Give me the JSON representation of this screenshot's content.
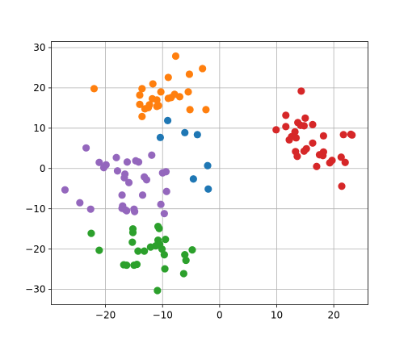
{
  "chart_data": {
    "type": "scatter",
    "title": "",
    "xlabel": "",
    "ylabel": "",
    "xlim": [
      -29.5,
      26
    ],
    "ylim": [
      -33.8,
      31.5
    ],
    "xticks": [
      -20,
      -10,
      0,
      10,
      20
    ],
    "yticks": [
      -30,
      -20,
      -10,
      0,
      10,
      20,
      30
    ],
    "xtick_labels": [
      "−20",
      "−10",
      "0",
      "10",
      "20"
    ],
    "ytick_labels": [
      "−30",
      "−20",
      "−10",
      "0",
      "10",
      "20",
      "30"
    ],
    "grid": true,
    "legend": "none",
    "series": [
      {
        "color": "#1f77b4",
        "points": [
          [
            -9.1,
            11.9
          ],
          [
            -6.1,
            8.9
          ],
          [
            -3.9,
            8.4
          ],
          [
            -10.4,
            7.7
          ],
          [
            -2.1,
            0.7
          ],
          [
            -4.6,
            -2.6
          ],
          [
            -2.0,
            -5.1
          ]
        ]
      },
      {
        "color": "#ff7f0e",
        "points": [
          [
            -7.7,
            27.9
          ],
          [
            -3.0,
            24.8
          ],
          [
            -22.0,
            19.8
          ],
          [
            -5.3,
            23.4
          ],
          [
            -9.0,
            22.6
          ],
          [
            -11.7,
            21.0
          ],
          [
            -13.6,
            19.8
          ],
          [
            -10.3,
            19.0
          ],
          [
            -5.5,
            19.0
          ],
          [
            -7.9,
            18.4
          ],
          [
            -14.0,
            18.2
          ],
          [
            -8.5,
            17.6
          ],
          [
            -11.8,
            17.3
          ],
          [
            -7.0,
            17.8
          ],
          [
            -11.0,
            17.0
          ],
          [
            -9.0,
            17.4
          ],
          [
            -12.3,
            15.8
          ],
          [
            -14.0,
            15.9
          ],
          [
            -11.0,
            15.4
          ],
          [
            -13.1,
            14.8
          ],
          [
            -10.7,
            15.6
          ],
          [
            -12.5,
            15.1
          ],
          [
            -5.2,
            14.6
          ],
          [
            -2.4,
            14.6
          ],
          [
            -13.6,
            12.9
          ]
        ]
      },
      {
        "color": "#2ca02c",
        "points": [
          [
            -22.5,
            -16.1
          ],
          [
            -15.2,
            -15.9
          ],
          [
            -15.2,
            -15.0
          ],
          [
            -10.6,
            -14.9
          ],
          [
            -10.8,
            -14.4
          ],
          [
            -15.3,
            -18.3
          ],
          [
            -10.8,
            -17.8
          ],
          [
            -9.5,
            -17.6
          ],
          [
            -10.5,
            -18.8
          ],
          [
            -11.2,
            -19.2
          ],
          [
            -12.1,
            -19.5
          ],
          [
            -10.1,
            -20.0
          ],
          [
            -21.1,
            -20.3
          ],
          [
            -14.3,
            -20.5
          ],
          [
            -13.2,
            -20.5
          ],
          [
            -4.8,
            -20.2
          ],
          [
            -9.7,
            -21.4
          ],
          [
            -6.1,
            -21.4
          ],
          [
            -5.9,
            -22.8
          ],
          [
            -16.8,
            -23.9
          ],
          [
            -16.3,
            -24.0
          ],
          [
            -15.0,
            -24.0
          ],
          [
            -14.5,
            -23.8
          ],
          [
            -9.6,
            -24.9
          ],
          [
            -6.3,
            -26.1
          ],
          [
            -10.9,
            -30.3
          ]
        ]
      },
      {
        "color": "#d62728",
        "points": [
          [
            14.3,
            19.2
          ],
          [
            11.6,
            13.2
          ],
          [
            15.0,
            12.5
          ],
          [
            13.7,
            11.4
          ],
          [
            11.6,
            10.4
          ],
          [
            14.2,
            10.7
          ],
          [
            14.8,
            10.6
          ],
          [
            16.3,
            10.9
          ],
          [
            9.9,
            9.6
          ],
          [
            13.2,
            9.1
          ],
          [
            12.6,
            7.9
          ],
          [
            13.4,
            7.6
          ],
          [
            18.2,
            8.1
          ],
          [
            21.7,
            8.4
          ],
          [
            23.0,
            8.5
          ],
          [
            23.2,
            8.3
          ],
          [
            12.2,
            7.1
          ],
          [
            16.3,
            6.3
          ],
          [
            15.2,
            4.9
          ],
          [
            14.8,
            4.3
          ],
          [
            13.3,
            4.2
          ],
          [
            18.2,
            4.1
          ],
          [
            17.5,
            3.4
          ],
          [
            18.1,
            3.2
          ],
          [
            13.6,
            3.0
          ],
          [
            21.3,
            2.8
          ],
          [
            19.7,
            2.0
          ],
          [
            19.3,
            1.4
          ],
          [
            22.0,
            1.5
          ],
          [
            17.0,
            0.5
          ],
          [
            21.4,
            -4.4
          ]
        ]
      },
      {
        "color": "#9467bd",
        "points": [
          [
            -23.4,
            5.1
          ],
          [
            -11.9,
            3.3
          ],
          [
            -18.1,
            2.7
          ],
          [
            -14.7,
            1.9
          ],
          [
            -14.2,
            1.6
          ],
          [
            -16.2,
            1.6
          ],
          [
            -21.1,
            1.5
          ],
          [
            -19.9,
            0.9
          ],
          [
            -20.3,
            0.2
          ],
          [
            -17.9,
            -0.6
          ],
          [
            -10.0,
            -1.1
          ],
          [
            -16.6,
            -1.4
          ],
          [
            -9.4,
            -0.8
          ],
          [
            -13.2,
            -2.1
          ],
          [
            -16.7,
            -2.3
          ],
          [
            -12.8,
            -2.8
          ],
          [
            -15.9,
            -3.5
          ],
          [
            -27.1,
            -5.3
          ],
          [
            -9.3,
            -5.7
          ],
          [
            -13.5,
            -6.6
          ],
          [
            -17.1,
            -6.6
          ],
          [
            -24.5,
            -8.5
          ],
          [
            -10.3,
            -8.9
          ],
          [
            -17.0,
            -9.3
          ],
          [
            -17.1,
            -9.9
          ],
          [
            -22.6,
            -10.1
          ],
          [
            -15.0,
            -10.1
          ],
          [
            -16.5,
            -10.3
          ],
          [
            -14.9,
            -10.7
          ],
          [
            -16.3,
            -10.5
          ],
          [
            -9.7,
            -11.2
          ]
        ]
      }
    ]
  }
}
